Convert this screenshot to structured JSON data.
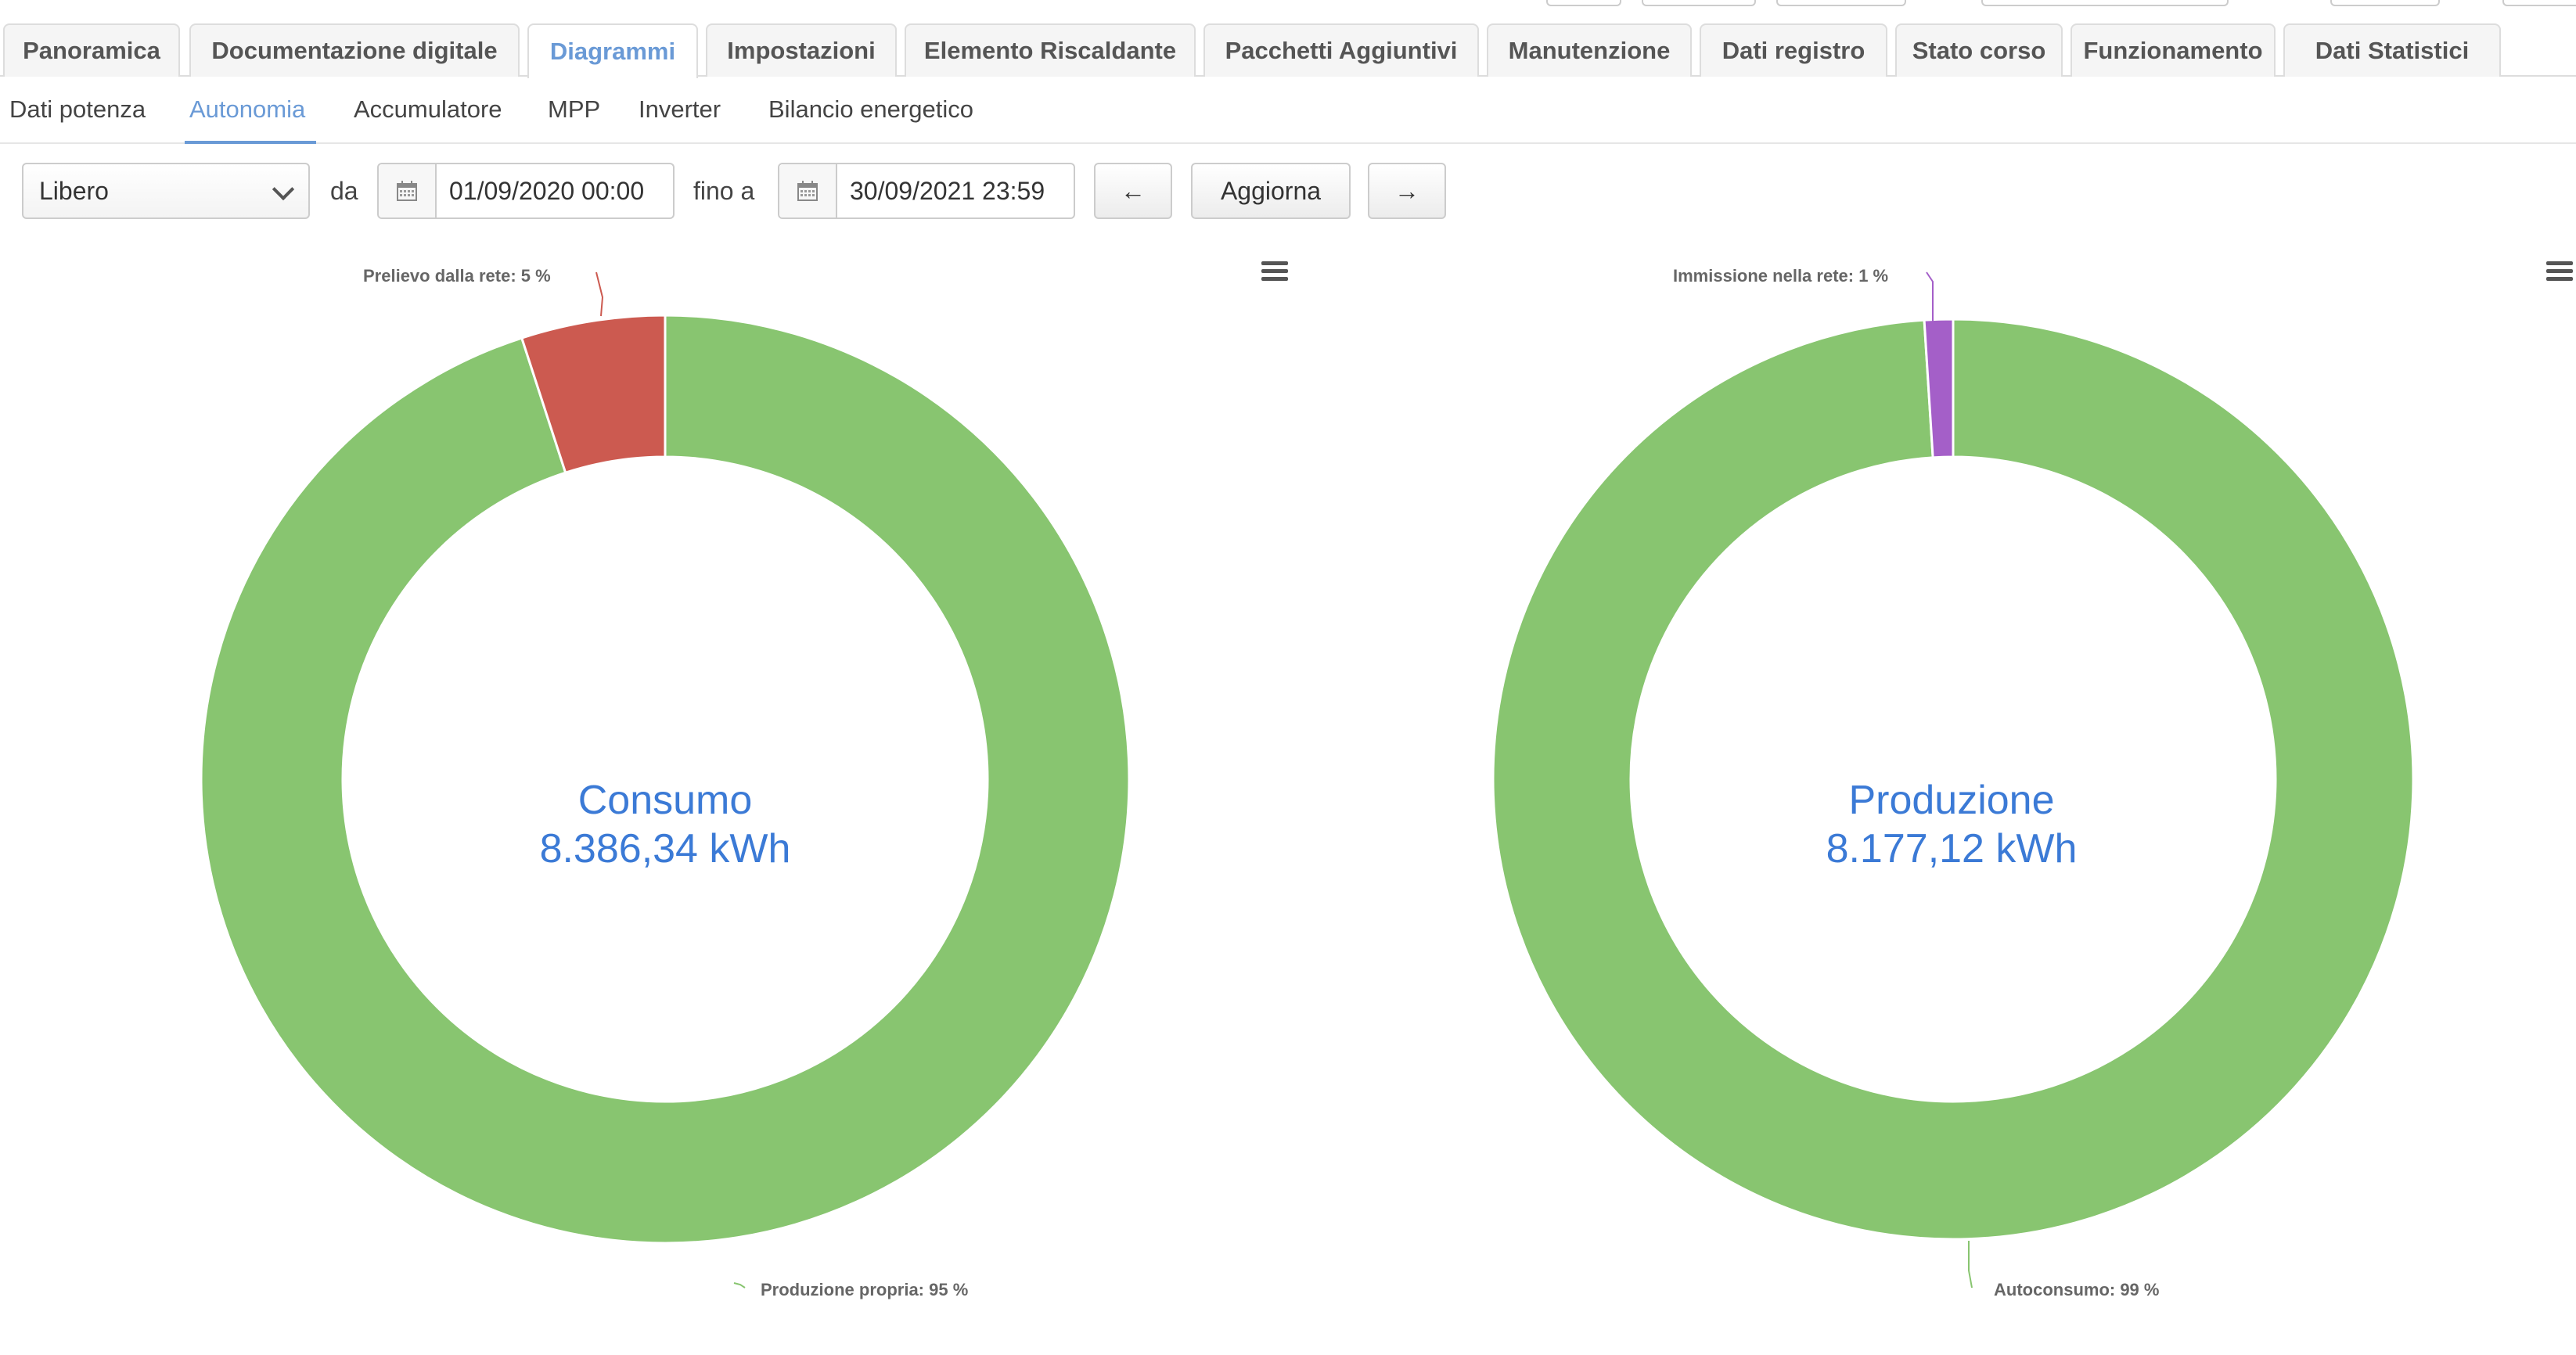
{
  "main_tabs": [
    {
      "label": "Panoramica",
      "active": false
    },
    {
      "label": "Documentazione digitale",
      "active": false
    },
    {
      "label": "Diagrammi",
      "active": true
    },
    {
      "label": "Impostazioni",
      "active": false
    },
    {
      "label": "Elemento Riscaldante",
      "active": false
    },
    {
      "label": "Pacchetti Aggiuntivi",
      "active": false
    },
    {
      "label": "Manutenzione",
      "active": false
    },
    {
      "label": "Dati registro",
      "active": false
    },
    {
      "label": "Stato corso",
      "active": false
    },
    {
      "label": "Funzionamento",
      "active": false
    },
    {
      "label": "Dati Statistici",
      "active": false
    }
  ],
  "sub_tabs": [
    {
      "label": "Dati potenza",
      "active": false
    },
    {
      "label": "Autonomia",
      "active": true
    },
    {
      "label": "Accumulatore",
      "active": false
    },
    {
      "label": "MPP",
      "active": false
    },
    {
      "label": "Inverter",
      "active": false
    },
    {
      "label": "Bilancio energetico",
      "active": false
    }
  ],
  "controls": {
    "period_value": "Libero",
    "from_label": "da",
    "from_value": "01/09/2020 00:00",
    "to_label": "fino a",
    "to_value": "30/09/2021 23:59",
    "prev_button": "←",
    "refresh_button": "Aggiorna",
    "next_button": "→"
  },
  "colors": {
    "green": "#88c570",
    "red": "#cc5a50",
    "purple": "#a45fc8",
    "accent": "#6a9ad6",
    "center_text": "#3b7ad6"
  },
  "chart_data": [
    {
      "type": "pie",
      "center_title": "Consumo",
      "center_value": "8.386,34 kWh",
      "slices": [
        {
          "label": "Produzione propria: 95 %",
          "value": 95,
          "color": "#88c570"
        },
        {
          "label": "Prelievo dalla rete: 5 %",
          "value": 5,
          "color": "#cc5a50"
        }
      ]
    },
    {
      "type": "pie",
      "center_title": "Produzione",
      "center_value": "8.177,12 kWh",
      "slices": [
        {
          "label": "Autoconsumo: 99 %",
          "value": 99,
          "color": "#88c570"
        },
        {
          "label": "Immissione nella rete: 1 %",
          "value": 1,
          "color": "#a45fc8"
        }
      ]
    }
  ]
}
